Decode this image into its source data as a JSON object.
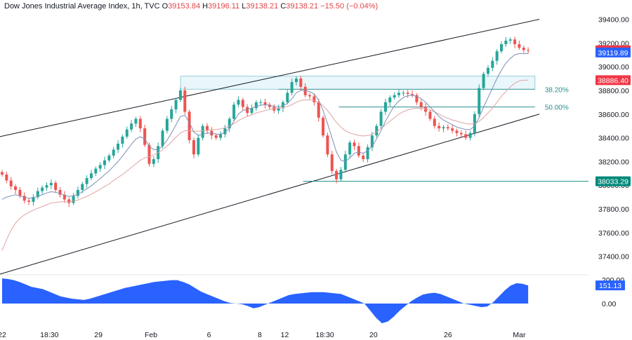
{
  "header": {
    "title": "Dow Jones Industrial Average Index, 1h, TVC",
    "open_label": "O",
    "open": "39153.84",
    "high_label": "H",
    "high": "39196.11",
    "low_label": "L",
    "low": "39138.21",
    "close_label": "C",
    "close": "39138.21",
    "change": "−15.50 (−0.04%)"
  },
  "colors": {
    "up": "#26a69a",
    "down": "#ef5350",
    "fast_ma": "#7b8fb6",
    "slow_ma": "#e0a3a3",
    "channel": "#131722",
    "zone_fill": "#e9f6fa",
    "zone_border": "#7fc4cf",
    "fib": "#2a8f8c",
    "oscillator": "#2962ff",
    "last_price_tag": "#f23645",
    "ma_tag": "#2962ff",
    "level_tag": "#f23645",
    "support_tag": "#00897b"
  },
  "chart_data": {
    "type": "candlestick",
    "title": "Dow Jones Industrial Average Index, 1h, TVC",
    "ylim": [
      37250,
      39480
    ],
    "y_ticks": [
      "39400.00",
      "39200.00",
      "39000.00",
      "38800.00",
      "38600.00",
      "38400.00",
      "38200.00",
      "38000.00",
      "37800.00",
      "37600.00",
      "37400.00"
    ],
    "x_ticks": [
      {
        "label": "22",
        "pos": 0
      },
      {
        "label": "18:30",
        "pos": 10.6
      },
      {
        "label": "29",
        "pos": 21.6
      },
      {
        "label": "Feb",
        "pos": 33.4
      },
      {
        "label": "6",
        "pos": 46.4
      },
      {
        "label": "8",
        "pos": 57.8
      },
      {
        "label": "12",
        "pos": 63.4
      },
      {
        "label": "18:30",
        "pos": 72.4
      },
      {
        "label": "20",
        "pos": 83.3
      },
      {
        "label": "26",
        "pos": 100.0
      },
      {
        "label": "Mar",
        "pos": 116.0
      }
    ],
    "x_range": [
      0,
      132
    ],
    "close_series": [
      38090,
      38040,
      37990,
      37960,
      37910,
      37870,
      37860,
      37900,
      37950,
      37980,
      38000,
      38020,
      37960,
      37920,
      37880,
      37850,
      37910,
      37960,
      38010,
      38060,
      38100,
      38140,
      38170,
      38210,
      38250,
      38300,
      38350,
      38410,
      38470,
      38520,
      38560,
      38480,
      38340,
      38180,
      38220,
      38330,
      38460,
      38560,
      38640,
      38720,
      38800,
      38620,
      38380,
      38260,
      38400,
      38500,
      38460,
      38420,
      38400,
      38430,
      38480,
      38560,
      38680,
      38720,
      38660,
      38610,
      38650,
      38700,
      38700,
      38680,
      38660,
      38630,
      38650,
      38700,
      38780,
      38870,
      38900,
      38830,
      38760,
      38750,
      38700,
      38570,
      38420,
      38260,
      38120,
      38050,
      38130,
      38260,
      38360,
      38330,
      38250,
      38220,
      38320,
      38420,
      38500,
      38620,
      38700,
      38740,
      38760,
      38780,
      38780,
      38770,
      38760,
      38700,
      38660,
      38620,
      38560,
      38500,
      38480,
      38490,
      38480,
      38460,
      38440,
      38430,
      38400,
      38440,
      38600,
      38820,
      38940,
      38990,
      39050,
      39130,
      39190,
      39220,
      39230,
      39190,
      39160,
      39140,
      39138
    ],
    "fast_ma_series": [
      37880,
      37900,
      37910,
      37920,
      37910,
      37900,
      37890,
      37895,
      37905,
      37920,
      37935,
      37945,
      37940,
      37930,
      37915,
      37905,
      37910,
      37925,
      37945,
      37970,
      37995,
      38025,
      38055,
      38090,
      38120,
      38160,
      38200,
      38245,
      38295,
      38345,
      38390,
      38410,
      38390,
      38330,
      38300,
      38300,
      38330,
      38380,
      38440,
      38510,
      38580,
      38590,
      38530,
      38450,
      38420,
      38430,
      38440,
      38440,
      38430,
      38430,
      38445,
      38480,
      38540,
      38600,
      38630,
      38640,
      38650,
      38665,
      38675,
      38680,
      38675,
      38665,
      38660,
      38670,
      38690,
      38730,
      38780,
      38800,
      38800,
      38790,
      38770,
      38720,
      38630,
      38520,
      38400,
      38280,
      38210,
      38200,
      38230,
      38270,
      38280,
      38270,
      38290,
      38330,
      38390,
      38460,
      38540,
      38610,
      38670,
      38710,
      38740,
      38755,
      38760,
      38750,
      38730,
      38700,
      38660,
      38620,
      38580,
      38550,
      38530,
      38510,
      38490,
      38480,
      38470,
      38470,
      38500,
      38570,
      38660,
      38740,
      38820,
      38900,
      38970,
      39030,
      39070,
      39100,
      39110,
      39110,
      39110
    ],
    "slow_ma_series": [
      37450,
      37540,
      37620,
      37680,
      37720,
      37750,
      37770,
      37790,
      37805,
      37820,
      37835,
      37850,
      37855,
      37860,
      37860,
      37860,
      37865,
      37875,
      37890,
      37905,
      37925,
      37945,
      37965,
      37990,
      38010,
      38040,
      38065,
      38090,
      38120,
      38150,
      38180,
      38210,
      38230,
      38240,
      38255,
      38275,
      38300,
      38330,
      38365,
      38405,
      38440,
      38460,
      38460,
      38455,
      38455,
      38460,
      38465,
      38470,
      38470,
      38475,
      38485,
      38500,
      38520,
      38545,
      38565,
      38580,
      38595,
      38610,
      38620,
      38630,
      38640,
      38645,
      38650,
      38655,
      38665,
      38680,
      38700,
      38715,
      38720,
      38720,
      38715,
      38700,
      38670,
      38630,
      38580,
      38530,
      38490,
      38460,
      38440,
      38430,
      38420,
      38415,
      38420,
      38430,
      38450,
      38480,
      38510,
      38540,
      38570,
      38600,
      38620,
      38635,
      38645,
      38650,
      38650,
      38645,
      38635,
      38620,
      38600,
      38580,
      38565,
      38550,
      38540,
      38530,
      38520,
      38515,
      38520,
      38540,
      38570,
      38610,
      38650,
      38700,
      38750,
      38790,
      38830,
      38860,
      38880,
      38886,
      38886
    ],
    "channel_upper": {
      "x0": 0,
      "y0": 38410,
      "x1": 121,
      "y1": 39400
    },
    "channel_lower": {
      "x0": 0,
      "y0": 37250,
      "x1": 121,
      "y1": 38600
    },
    "resistance_zone": {
      "x0": 40.5,
      "x1": 120,
      "y_low": 38810,
      "y_high": 38920
    },
    "fib_levels": [
      {
        "label": "38.20%",
        "value": 38810,
        "x0": 62.5,
        "x1": 120
      },
      {
        "label": "50.00%",
        "value": 38660,
        "x0": 76,
        "x1": 120
      }
    ],
    "support_line": {
      "value": 38033.29,
      "x0": 68,
      "x1": 132
    },
    "price_tags": [
      {
        "label": "39138.21",
        "value": 39138.21,
        "color": "last_price_tag"
      },
      {
        "label": "39119.89",
        "value": 39119.89,
        "color": "ma_tag"
      },
      {
        "label": "38886.40",
        "value": 38886.4,
        "color": "level_tag"
      },
      {
        "label": "38033.29",
        "value": 38033.29,
        "color": "support_tag"
      }
    ],
    "oscillator": {
      "y_ticks": [
        "200.00",
        "0.00"
      ],
      "ylim": [
        -170,
        240
      ],
      "last_label": "151.13",
      "last_value": 151.13,
      "values": [
        210,
        205,
        195,
        180,
        160,
        140,
        130,
        120,
        100,
        80,
        60,
        50,
        40,
        35,
        30,
        40,
        55,
        70,
        85,
        100,
        115,
        130,
        140,
        150,
        160,
        170,
        180,
        185,
        190,
        195,
        195,
        180,
        160,
        130,
        100,
        80,
        60,
        40,
        20,
        5,
        0,
        -5,
        -20,
        -40,
        -30,
        -10,
        10,
        30,
        50,
        70,
        80,
        85,
        90,
        95,
        95,
        95,
        90,
        85,
        80,
        60,
        40,
        20,
        0,
        -60,
        -120,
        -165,
        -150,
        -110,
        -60,
        -20,
        20,
        50,
        75,
        85,
        90,
        80,
        60,
        40,
        20,
        0,
        -10,
        -20,
        -30,
        -25,
        10,
        60,
        110,
        150,
        170,
        165,
        151
      ]
    }
  }
}
